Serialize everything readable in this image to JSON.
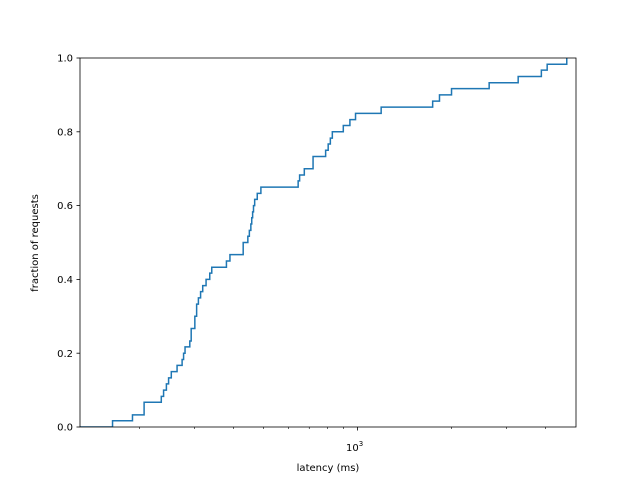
{
  "chart_data": {
    "type": "line",
    "drawstyle": "step",
    "xscale": "log",
    "xlabel": "latency (ms)",
    "ylabel": "fraction of requests",
    "xlim": [
      129,
      5010
    ],
    "ylim": [
      0.0,
      1.0
    ],
    "x_ticks": [
      {
        "value": 1000,
        "base": "10",
        "exp": "3"
      }
    ],
    "x_minor_ticks": [
      200,
      300,
      400,
      500,
      600,
      700,
      800,
      900,
      2000,
      3000,
      4000
    ],
    "y_ticks": [
      "0.0",
      "0.2",
      "0.4",
      "0.6",
      "0.8",
      "1.0"
    ],
    "grid": false,
    "series": [
      {
        "color": "#1f77b4",
        "points": [
          [
            129,
            0.0
          ],
          [
            164,
            0.0
          ],
          [
            164,
            0.017
          ],
          [
            190,
            0.017
          ],
          [
            190,
            0.033
          ],
          [
            207,
            0.033
          ],
          [
            207,
            0.067
          ],
          [
            235,
            0.067
          ],
          [
            235,
            0.083
          ],
          [
            239,
            0.083
          ],
          [
            239,
            0.1
          ],
          [
            244,
            0.1
          ],
          [
            244,
            0.117
          ],
          [
            248,
            0.117
          ],
          [
            248,
            0.133
          ],
          [
            253,
            0.133
          ],
          [
            253,
            0.15
          ],
          [
            264,
            0.15
          ],
          [
            264,
            0.167
          ],
          [
            274,
            0.167
          ],
          [
            274,
            0.183
          ],
          [
            277,
            0.183
          ],
          [
            277,
            0.2
          ],
          [
            280,
            0.2
          ],
          [
            280,
            0.217
          ],
          [
            290,
            0.217
          ],
          [
            290,
            0.233
          ],
          [
            293,
            0.233
          ],
          [
            293,
            0.267
          ],
          [
            301,
            0.267
          ],
          [
            301,
            0.3
          ],
          [
            305,
            0.3
          ],
          [
            305,
            0.333
          ],
          [
            309,
            0.333
          ],
          [
            309,
            0.35
          ],
          [
            314,
            0.35
          ],
          [
            314,
            0.367
          ],
          [
            319,
            0.367
          ],
          [
            319,
            0.383
          ],
          [
            327,
            0.383
          ],
          [
            327,
            0.4
          ],
          [
            336,
            0.4
          ],
          [
            336,
            0.417
          ],
          [
            341,
            0.417
          ],
          [
            341,
            0.433
          ],
          [
            380,
            0.433
          ],
          [
            380,
            0.45
          ],
          [
            390,
            0.45
          ],
          [
            390,
            0.467
          ],
          [
            430,
            0.467
          ],
          [
            430,
            0.5
          ],
          [
            445,
            0.5
          ],
          [
            445,
            0.517
          ],
          [
            450,
            0.517
          ],
          [
            450,
            0.533
          ],
          [
            455,
            0.533
          ],
          [
            455,
            0.55
          ],
          [
            458,
            0.55
          ],
          [
            458,
            0.567
          ],
          [
            461,
            0.567
          ],
          [
            461,
            0.583
          ],
          [
            464,
            0.583
          ],
          [
            464,
            0.6
          ],
          [
            468,
            0.6
          ],
          [
            468,
            0.617
          ],
          [
            477,
            0.617
          ],
          [
            477,
            0.633
          ],
          [
            490,
            0.633
          ],
          [
            490,
            0.65
          ],
          [
            645,
            0.65
          ],
          [
            645,
            0.667
          ],
          [
            652,
            0.667
          ],
          [
            652,
            0.683
          ],
          [
            675,
            0.683
          ],
          [
            675,
            0.7
          ],
          [
            720,
            0.7
          ],
          [
            720,
            0.733
          ],
          [
            790,
            0.733
          ],
          [
            790,
            0.75
          ],
          [
            805,
            0.75
          ],
          [
            805,
            0.767
          ],
          [
            818,
            0.767
          ],
          [
            818,
            0.783
          ],
          [
            830,
            0.783
          ],
          [
            830,
            0.8
          ],
          [
            900,
            0.8
          ],
          [
            900,
            0.817
          ],
          [
            945,
            0.817
          ],
          [
            945,
            0.833
          ],
          [
            985,
            0.833
          ],
          [
            985,
            0.85
          ],
          [
            1190,
            0.85
          ],
          [
            1190,
            0.867
          ],
          [
            1740,
            0.867
          ],
          [
            1740,
            0.883
          ],
          [
            1830,
            0.883
          ],
          [
            1830,
            0.9
          ],
          [
            2000,
            0.9
          ],
          [
            2000,
            0.917
          ],
          [
            2640,
            0.917
          ],
          [
            2640,
            0.933
          ],
          [
            3270,
            0.933
          ],
          [
            3270,
            0.95
          ],
          [
            3880,
            0.95
          ],
          [
            3880,
            0.967
          ],
          [
            4050,
            0.967
          ],
          [
            4050,
            0.983
          ],
          [
            4680,
            0.983
          ],
          [
            4680,
            1.0
          ]
        ]
      }
    ]
  }
}
